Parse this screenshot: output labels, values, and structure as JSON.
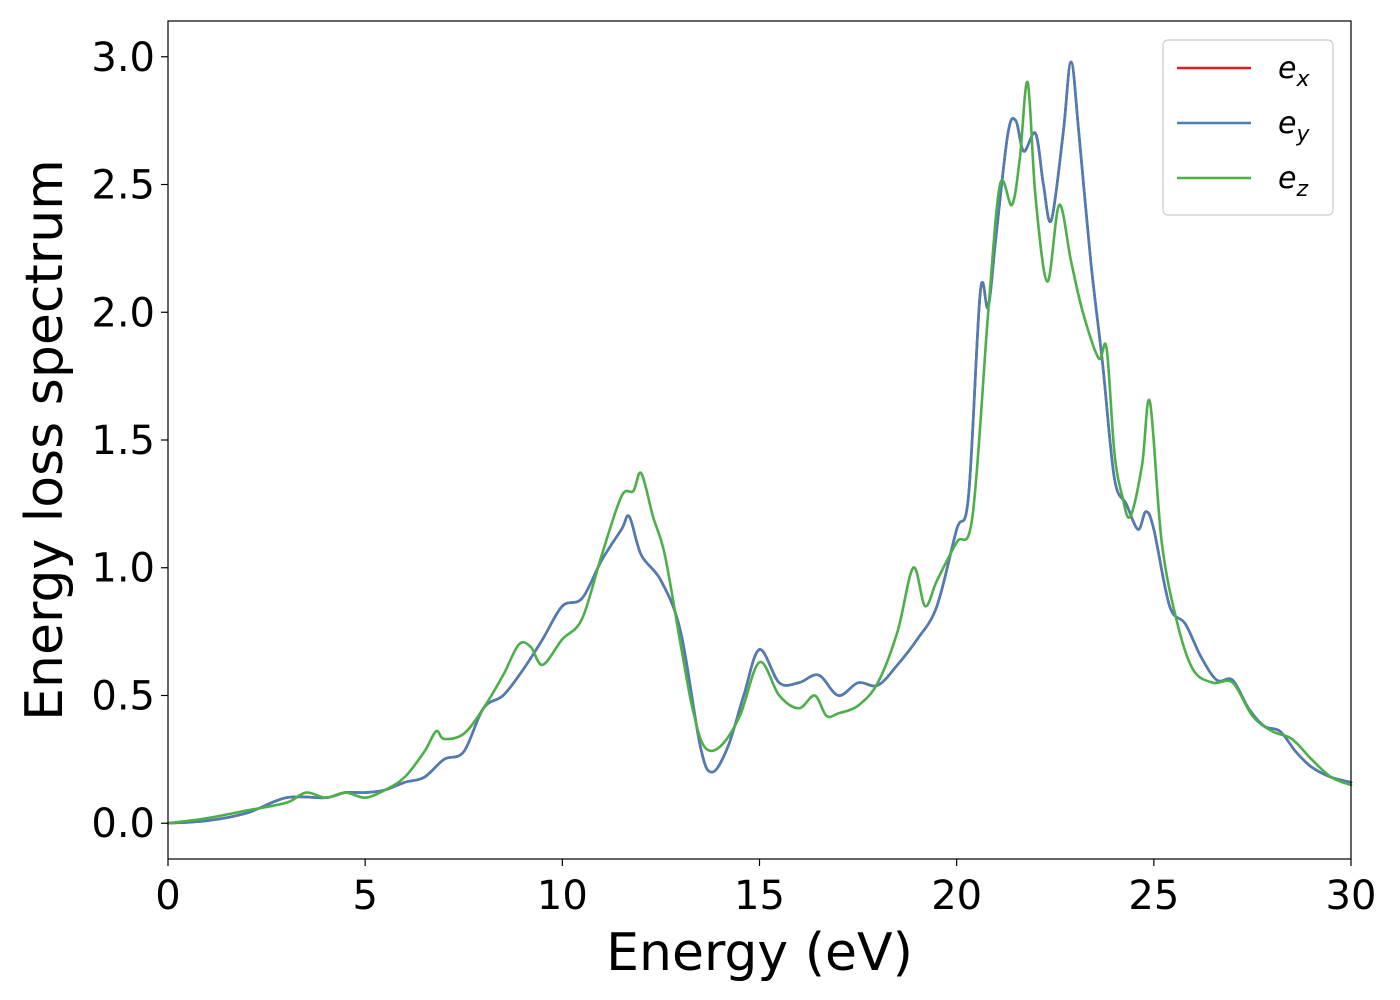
{
  "chart_data": {
    "type": "line",
    "title": "",
    "xlabel": "Energy (eV)",
    "ylabel": "Energy loss spectrum",
    "xlim": [
      0,
      30
    ],
    "ylim": [
      -0.14,
      3.14
    ],
    "xticks": [
      0,
      5,
      10,
      15,
      20,
      25,
      30
    ],
    "xtick_labels": [
      "0",
      "5",
      "10",
      "15",
      "20",
      "25",
      "30"
    ],
    "yticks": [
      0.0,
      0.5,
      1.0,
      1.5,
      2.0,
      2.5,
      3.0
    ],
    "ytick_labels": [
      "0.0",
      "0.5",
      "1.0",
      "1.5",
      "2.0",
      "2.5",
      "3.0"
    ],
    "grid": false,
    "legend_position": "top-right",
    "series": [
      {
        "name": "e_x",
        "legend_main": "e",
        "legend_sub": "x",
        "color": "#e41a1c",
        "x": [
          0,
          1,
          2,
          3,
          4,
          4.5,
          5,
          5.5,
          6,
          6.5,
          7,
          7.5,
          8,
          8.5,
          9,
          9.5,
          10,
          10.5,
          11,
          11.5,
          11.7,
          12,
          12.5,
          13,
          13.5,
          13.8,
          14.2,
          14.6,
          15,
          15.5,
          16,
          16.5,
          17,
          17.5,
          18,
          18.5,
          19,
          19.5,
          20,
          20.3,
          20.6,
          20.8,
          21,
          21.3,
          21.5,
          21.7,
          22,
          22.2,
          22.4,
          22.7,
          22.9,
          23.1,
          23.4,
          23.7,
          24,
          24.3,
          24.6,
          24.8,
          25,
          25.4,
          25.8,
          26.2,
          26.6,
          27,
          27.4,
          27.8,
          28.2,
          28.6,
          29,
          29.5,
          30
        ],
        "values": [
          0.0,
          0.01,
          0.04,
          0.1,
          0.1,
          0.12,
          0.12,
          0.13,
          0.16,
          0.18,
          0.25,
          0.28,
          0.45,
          0.5,
          0.6,
          0.72,
          0.85,
          0.88,
          1.03,
          1.15,
          1.2,
          1.05,
          0.95,
          0.75,
          0.3,
          0.2,
          0.3,
          0.5,
          0.68,
          0.55,
          0.55,
          0.58,
          0.5,
          0.55,
          0.54,
          0.62,
          0.72,
          0.85,
          1.15,
          1.28,
          2.08,
          2.02,
          2.3,
          2.7,
          2.75,
          2.63,
          2.7,
          2.5,
          2.36,
          2.7,
          2.98,
          2.7,
          2.2,
          1.8,
          1.35,
          1.25,
          1.15,
          1.22,
          1.15,
          0.85,
          0.78,
          0.65,
          0.56,
          0.56,
          0.45,
          0.38,
          0.36,
          0.28,
          0.22,
          0.18,
          0.16
        ]
      },
      {
        "name": "e_y",
        "legend_main": "e",
        "legend_sub": "y",
        "color": "#4a7eb5",
        "x": [
          0,
          1,
          2,
          3,
          4,
          4.5,
          5,
          5.5,
          6,
          6.5,
          7,
          7.5,
          8,
          8.5,
          9,
          9.5,
          10,
          10.5,
          11,
          11.5,
          11.7,
          12,
          12.5,
          13,
          13.5,
          13.8,
          14.2,
          14.6,
          15,
          15.5,
          16,
          16.5,
          17,
          17.5,
          18,
          18.5,
          19,
          19.5,
          20,
          20.3,
          20.6,
          20.8,
          21,
          21.3,
          21.5,
          21.7,
          22,
          22.2,
          22.4,
          22.7,
          22.9,
          23.1,
          23.4,
          23.7,
          24,
          24.3,
          24.6,
          24.8,
          25,
          25.4,
          25.8,
          26.2,
          26.6,
          27,
          27.4,
          27.8,
          28.2,
          28.6,
          29,
          29.5,
          30
        ],
        "values": [
          0.0,
          0.01,
          0.04,
          0.1,
          0.1,
          0.12,
          0.12,
          0.13,
          0.16,
          0.18,
          0.25,
          0.28,
          0.45,
          0.5,
          0.6,
          0.72,
          0.85,
          0.88,
          1.03,
          1.15,
          1.2,
          1.05,
          0.95,
          0.75,
          0.3,
          0.2,
          0.3,
          0.5,
          0.68,
          0.55,
          0.55,
          0.58,
          0.5,
          0.55,
          0.54,
          0.62,
          0.72,
          0.85,
          1.15,
          1.28,
          2.08,
          2.02,
          2.3,
          2.7,
          2.75,
          2.63,
          2.7,
          2.5,
          2.36,
          2.7,
          2.98,
          2.7,
          2.2,
          1.8,
          1.35,
          1.25,
          1.15,
          1.22,
          1.15,
          0.85,
          0.78,
          0.65,
          0.56,
          0.56,
          0.45,
          0.38,
          0.36,
          0.28,
          0.22,
          0.18,
          0.16
        ]
      },
      {
        "name": "e_z",
        "legend_main": "e",
        "legend_sub": "z",
        "color": "#4daf4a",
        "x": [
          0,
          1,
          2,
          3,
          3.5,
          4,
          4.5,
          5,
          5.5,
          6,
          6.5,
          6.8,
          7,
          7.5,
          8,
          8.5,
          8.9,
          9.2,
          9.5,
          10,
          10.5,
          11,
          11.5,
          11.8,
          12,
          12.3,
          12.6,
          13,
          13.3,
          13.6,
          14,
          14.5,
          15,
          15.5,
          16,
          16.4,
          16.7,
          17,
          17.5,
          18,
          18.5,
          18.9,
          19.2,
          19.5,
          20,
          20.4,
          20.8,
          21.1,
          21.4,
          21.6,
          21.8,
          22,
          22.3,
          22.6,
          22.9,
          23.2,
          23.6,
          23.8,
          24,
          24.2,
          24.4,
          24.7,
          24.9,
          25.2,
          25.6,
          26,
          26.5,
          27,
          27.5,
          28,
          28.5,
          29,
          29.5,
          30
        ],
        "values": [
          0.0,
          0.02,
          0.05,
          0.08,
          0.12,
          0.1,
          0.12,
          0.1,
          0.13,
          0.18,
          0.28,
          0.36,
          0.33,
          0.35,
          0.45,
          0.58,
          0.7,
          0.69,
          0.62,
          0.72,
          0.8,
          1.05,
          1.28,
          1.3,
          1.37,
          1.2,
          1.05,
          0.7,
          0.45,
          0.3,
          0.3,
          0.42,
          0.63,
          0.5,
          0.45,
          0.5,
          0.42,
          0.43,
          0.46,
          0.55,
          0.75,
          1.0,
          0.85,
          0.95,
          1.1,
          1.2,
          2.0,
          2.5,
          2.42,
          2.6,
          2.9,
          2.45,
          2.12,
          2.42,
          2.2,
          2.0,
          1.82,
          1.86,
          1.45,
          1.28,
          1.2,
          1.4,
          1.65,
          1.1,
          0.78,
          0.6,
          0.55,
          0.55,
          0.42,
          0.36,
          0.33,
          0.25,
          0.18,
          0.15
        ]
      }
    ]
  }
}
